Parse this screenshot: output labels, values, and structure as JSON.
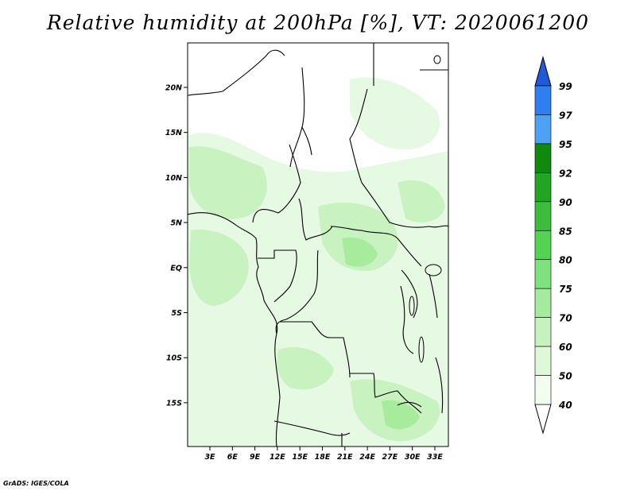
{
  "title": "Relative humidity at 200hPa [%], VT: 2020061200",
  "footer": "GrADS: IGES/COLA",
  "colors": {
    "frame": "#000000",
    "border": "#000000",
    "fill_light": "#e6f9e3",
    "fill_mid": "#c8f2c0",
    "fill_deep": "#a7eb9c"
  },
  "map": {
    "lat_ticks": [
      "20N",
      "15N",
      "10N",
      "5N",
      "EQ",
      "5S",
      "10S",
      "15S"
    ],
    "lon_ticks": [
      "3E",
      "6E",
      "9E",
      "12E",
      "15E",
      "18E",
      "21E",
      "24E",
      "27E",
      "30E",
      "33E"
    ]
  },
  "colorbar": {
    "labels": [
      "99",
      "97",
      "95",
      "92",
      "90",
      "85",
      "80",
      "75",
      "70",
      "60",
      "50",
      "40"
    ],
    "colors": [
      "#1f5ad8",
      "#2f7ef2",
      "#4da2f5",
      "#0f8a0f",
      "#22a522",
      "#3cbd3c",
      "#52d452",
      "#7ee27e",
      "#a4eba0",
      "#c6f2c0",
      "#def9d8",
      "#f2fdf0"
    ],
    "overflow_top_color": "#1f5ad8",
    "overflow_bottom_color": "#ffffff"
  }
}
